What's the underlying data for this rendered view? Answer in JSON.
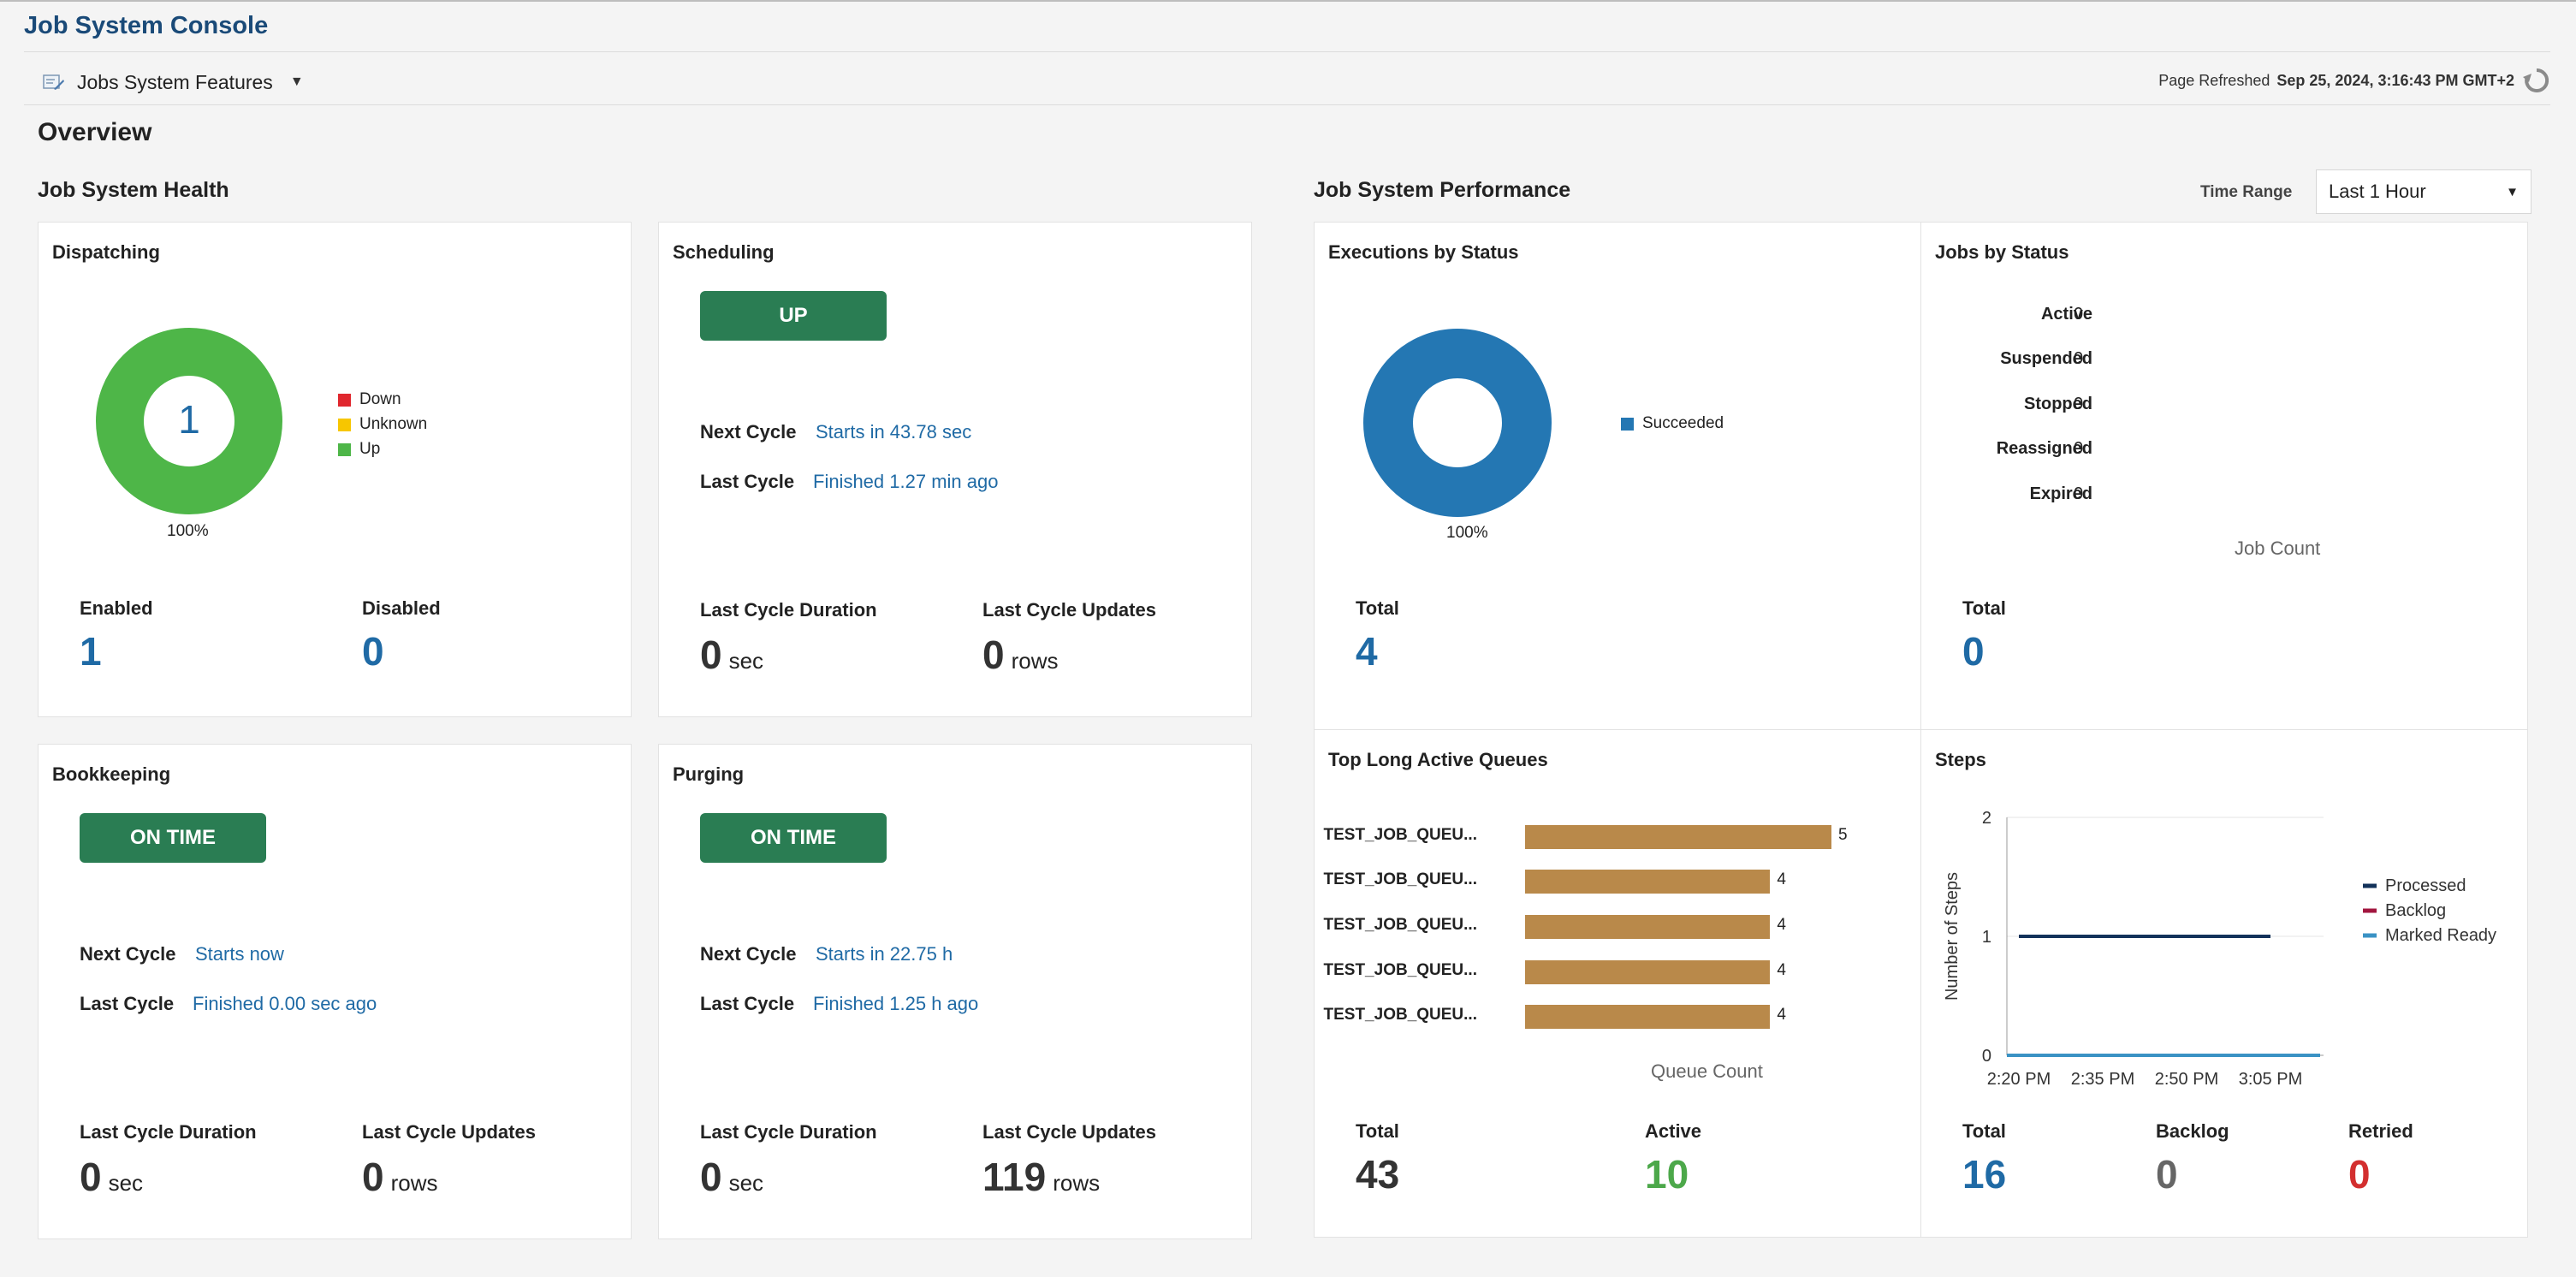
{
  "app": {
    "title": "Job System Console"
  },
  "toolbar": {
    "features_label": "Jobs System Features",
    "refreshed_label": "Page Refreshed",
    "refreshed_value": "Sep 25, 2024, 3:16:43 PM GMT+2"
  },
  "overview": {
    "title": "Overview"
  },
  "health": {
    "title": "Job System Health",
    "dispatching": {
      "title": "Dispatching",
      "center_value": "1",
      "percent": "100%",
      "legend": [
        {
          "label": "Down",
          "color": "#e0272e"
        },
        {
          "label": "Unknown",
          "color": "#f7c600"
        },
        {
          "label": "Up",
          "color": "#4eb648"
        }
      ],
      "enabled_label": "Enabled",
      "enabled_value": "1",
      "disabled_label": "Disabled",
      "disabled_value": "0"
    },
    "scheduling": {
      "title": "Scheduling",
      "status": "UP",
      "next_cycle_label": "Next Cycle",
      "next_cycle_value": "Starts in 43.78 sec",
      "last_cycle_label": "Last Cycle",
      "last_cycle_value": "Finished 1.27 min ago",
      "duration_label": "Last Cycle Duration",
      "duration_value": "0",
      "duration_unit": "sec",
      "updates_label": "Last Cycle Updates",
      "updates_value": "0",
      "updates_unit": "rows"
    },
    "bookkeeping": {
      "title": "Bookkeeping",
      "status": "ON TIME",
      "next_cycle_label": "Next Cycle",
      "next_cycle_value": "Starts now",
      "last_cycle_label": "Last Cycle",
      "last_cycle_value": "Finished 0.00 sec ago",
      "duration_label": "Last Cycle Duration",
      "duration_value": "0",
      "duration_unit": "sec",
      "updates_label": "Last Cycle Updates",
      "updates_value": "0",
      "updates_unit": "rows"
    },
    "purging": {
      "title": "Purging",
      "status": "ON TIME",
      "next_cycle_label": "Next Cycle",
      "next_cycle_value": "Starts in 22.75 h",
      "last_cycle_label": "Last Cycle",
      "last_cycle_value": "Finished 1.25 h ago",
      "duration_label": "Last Cycle Duration",
      "duration_value": "0",
      "duration_unit": "sec",
      "updates_label": "Last Cycle Updates",
      "updates_value": "119",
      "updates_unit": "rows"
    }
  },
  "performance": {
    "title": "Job System Performance",
    "time_range_label": "Time Range",
    "time_range_value": "Last 1 Hour",
    "executions": {
      "title": "Executions by Status",
      "percent": "100%",
      "legend_label": "Succeeded",
      "color": "#2477b3",
      "total_label": "Total",
      "total_value": "4"
    },
    "jobs": {
      "title": "Jobs by Status",
      "rows": [
        {
          "label": "Active",
          "value": "0"
        },
        {
          "label": "Suspended",
          "value": "0"
        },
        {
          "label": "Stopped",
          "value": "0"
        },
        {
          "label": "Reassigned",
          "value": "0"
        },
        {
          "label": "Expired",
          "value": "0"
        }
      ],
      "axis_label": "Job Count",
      "total_label": "Total",
      "total_value": "0"
    },
    "queues": {
      "title": "Top Long Active Queues",
      "axis_label": "Queue Count",
      "bar_color": "#b9894a",
      "items": [
        {
          "label": "TEST_JOB_QUEU...",
          "value": 5
        },
        {
          "label": "TEST_JOB_QUEU...",
          "value": 4
        },
        {
          "label": "TEST_JOB_QUEU...",
          "value": 4
        },
        {
          "label": "TEST_JOB_QUEU...",
          "value": 4
        },
        {
          "label": "TEST_JOB_QUEU...",
          "value": 4
        }
      ],
      "total_label": "Total",
      "total_value": "43",
      "active_label": "Active",
      "active_value": "10"
    },
    "steps": {
      "title": "Steps",
      "total_label": "Total",
      "total_value": "16",
      "backlog_label": "Backlog",
      "backlog_value": "0",
      "retried_label": "Retried",
      "retried_value": "0"
    }
  },
  "chart_data": {
    "type": "line",
    "ylabel": "Number of Steps",
    "xlabel": "",
    "x_ticks": [
      "2:20 PM",
      "2:35 PM",
      "2:50 PM",
      "3:05 PM"
    ],
    "y_ticks": [
      "0",
      "1",
      "2"
    ],
    "ylim": [
      0,
      2
    ],
    "x": [
      "2:20 PM",
      "3:05 PM"
    ],
    "series": [
      {
        "name": "Processed",
        "color": "#13325a",
        "values": [
          1,
          1
        ]
      },
      {
        "name": "Backlog",
        "color": "#a2163f",
        "values": [
          0,
          0
        ]
      },
      {
        "name": "Marked Ready",
        "color": "#3a92c4",
        "values": [
          0,
          0
        ]
      }
    ],
    "legend": "right",
    "grid": true
  }
}
